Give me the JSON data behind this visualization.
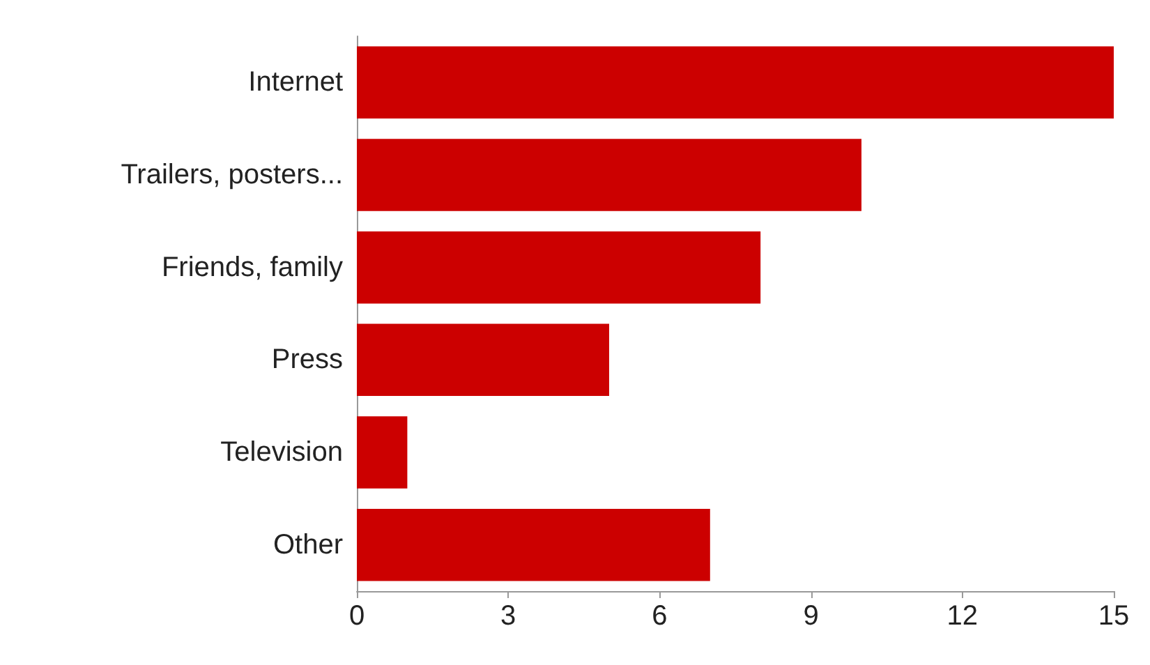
{
  "chart_data": {
    "type": "bar",
    "orientation": "horizontal",
    "categories": [
      "Internet",
      "Trailers, posters...",
      "Friends, family",
      "Press",
      "Television",
      "Other"
    ],
    "values": [
      15,
      10,
      8,
      5,
      1,
      7
    ],
    "color": "#cc0000",
    "xlim": [
      0,
      15
    ],
    "xticks": [
      0,
      3,
      6,
      9,
      12,
      15
    ],
    "grid": false
  }
}
